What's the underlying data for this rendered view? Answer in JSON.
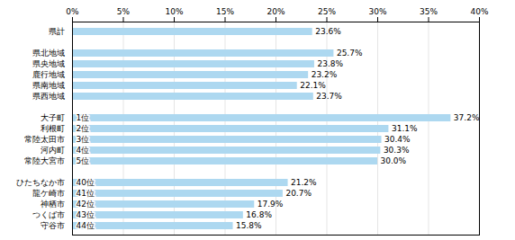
{
  "chart_data": {
    "type": "bar",
    "orientation": "horizontal",
    "categories": [
      "県計",
      null,
      "県北地域",
      "県央地域",
      "鹿行地域",
      "県南地域",
      "県西地域",
      null,
      "大子町",
      "利根町",
      "常陸太田市",
      "河内町",
      "常陸大宮市",
      null,
      "ひたちなか市",
      "龍ケ崎市",
      "神栖市",
      "つくば市",
      "守谷市"
    ],
    "ranks": [
      null,
      null,
      null,
      null,
      null,
      null,
      null,
      null,
      "1位",
      "2位",
      "3位",
      "4位",
      "5位",
      null,
      "40位",
      "41位",
      "42位",
      "43位",
      "44位"
    ],
    "values": [
      23.6,
      null,
      25.7,
      23.8,
      23.2,
      22.1,
      23.7,
      null,
      37.2,
      31.1,
      30.4,
      30.3,
      30.0,
      null,
      21.2,
      20.7,
      17.9,
      16.8,
      15.8
    ],
    "value_labels": [
      "23.6%",
      null,
      "25.7%",
      "23.8%",
      "23.2%",
      "22.1%",
      "23.7%",
      null,
      "37.2%",
      "31.1%",
      "30.4%",
      "30.3%",
      "30.0%",
      null,
      "21.2%",
      "20.7%",
      "17.9%",
      "16.8%",
      "15.8%"
    ],
    "data_labels": true,
    "color": "#add8f0",
    "xlim": [
      0,
      40
    ],
    "xticks": [
      {
        "value": 0,
        "label": "0%"
      },
      {
        "value": 5,
        "label": "5%"
      },
      {
        "value": 10,
        "label": "10%"
      },
      {
        "value": 15,
        "label": "15%"
      },
      {
        "value": 20,
        "label": "20%"
      },
      {
        "value": 25,
        "label": "25%"
      },
      {
        "value": 30,
        "label": "30%"
      },
      {
        "value": 35,
        "label": "35%"
      },
      {
        "value": 40,
        "label": "40%"
      }
    ],
    "grid": true
  }
}
